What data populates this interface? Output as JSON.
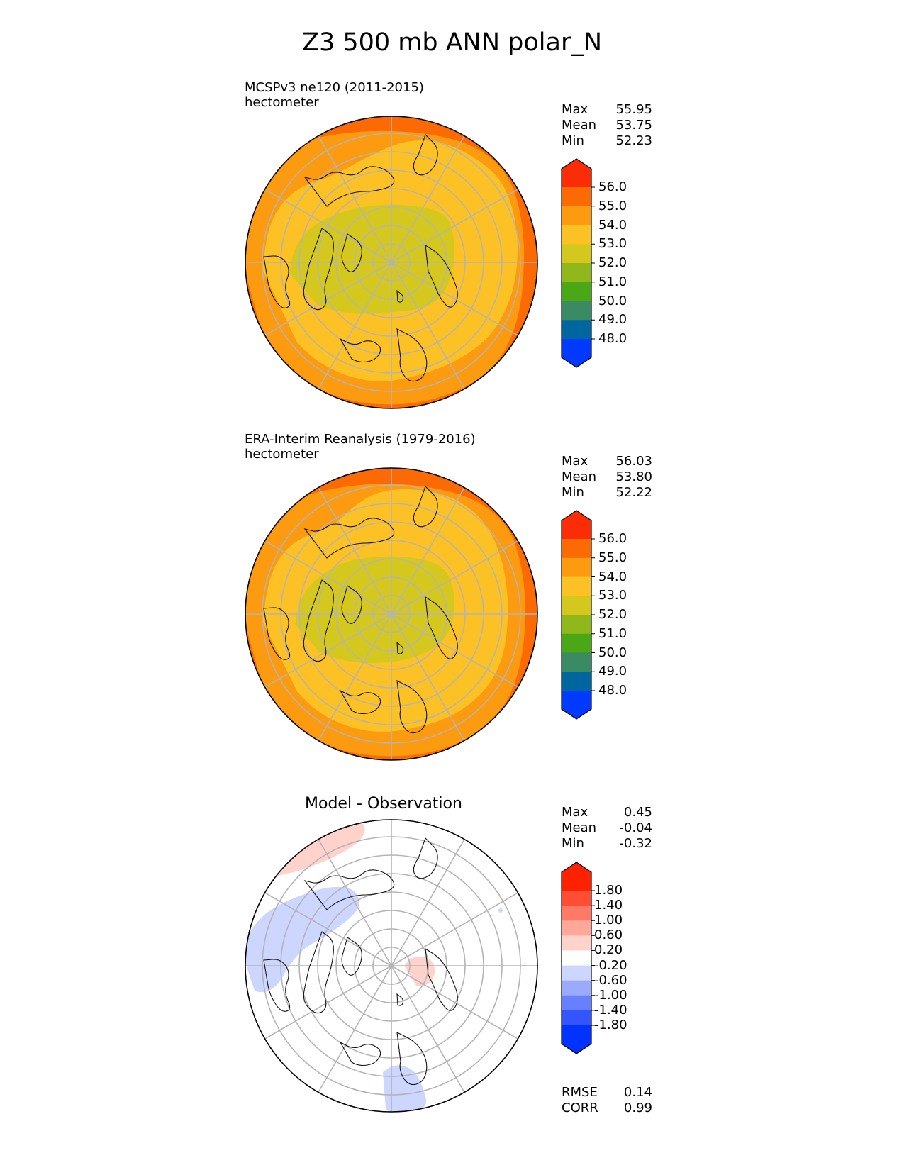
{
  "title": "Z3 500 mb ANN polar_N",
  "panels": [
    {
      "name": "test",
      "title_line1": "MCSPv3 ne120 (2011-2015)",
      "title_line2": "hectometer",
      "stats": [
        {
          "label": "Max",
          "value": "55.95"
        },
        {
          "label": "Mean",
          "value": "53.75"
        },
        {
          "label": "Min",
          "value": "52.23"
        }
      ],
      "colorbar_labels": [
        "56.0",
        "55.0",
        "54.0",
        "53.0",
        "52.0",
        "51.0",
        "50.0",
        "49.0",
        "48.0"
      ]
    },
    {
      "name": "reference",
      "title_line1": "ERA-Interim Reanalysis (1979-2016)",
      "title_line2": "hectometer",
      "stats": [
        {
          "label": "Max",
          "value": "56.03"
        },
        {
          "label": "Mean",
          "value": "53.80"
        },
        {
          "label": "Min",
          "value": "52.22"
        }
      ],
      "colorbar_labels": [
        "56.0",
        "55.0",
        "54.0",
        "53.0",
        "52.0",
        "51.0",
        "50.0",
        "49.0",
        "48.0"
      ]
    },
    {
      "name": "difference",
      "title_center": "Model - Observation",
      "stats": [
        {
          "label": "Max",
          "value": "0.45"
        },
        {
          "label": "Mean",
          "value": "-0.04"
        },
        {
          "label": "Min",
          "value": "-0.32"
        }
      ],
      "colorbar_labels": [
        "1.80",
        "1.40",
        "1.00",
        "0.60",
        "0.20",
        "-0.20",
        "-0.60",
        "-1.00",
        "-1.40",
        "-1.80"
      ],
      "extra_stats": [
        {
          "label": "RMSE",
          "value": "0.14"
        },
        {
          "label": "CORR",
          "value": "0.99"
        }
      ]
    }
  ],
  "chart_data": {
    "type": "heatmap",
    "projection": "north polar stereographic",
    "variable": "Z3 500 mb",
    "season": "ANN",
    "units": "hectometer",
    "levels_main": [
      48,
      49,
      50,
      51,
      52,
      53,
      54,
      55,
      56
    ],
    "levels_diff": [
      -1.8,
      -1.4,
      -1.0,
      -0.6,
      -0.2,
      0.2,
      0.6,
      1.0,
      1.4,
      1.8
    ],
    "colors_main": [
      "#0039ff",
      "#0066a0",
      "#3a8a64",
      "#4aa716",
      "#90b81a",
      "#d4c81e",
      "#fcc124",
      "#fc9a10",
      "#fc6a04",
      "#fc2c06"
    ],
    "colors_diff": [
      "#0033ff",
      "#3355ff",
      "#6680ff",
      "#99aaff",
      "#ccd6ff",
      "#ffffff",
      "#ffd3cc",
      "#ffa799",
      "#ff7a66",
      "#ff4e33",
      "#ff2200"
    ],
    "panels": [
      {
        "name": "MCSPv3 ne120 (2011-2015)",
        "max": 55.95,
        "mean": 53.75,
        "min": 52.23
      },
      {
        "name": "ERA-Interim Reanalysis (1979-2016)",
        "max": 56.03,
        "mean": 53.8,
        "min": 52.22
      },
      {
        "name": "Model - Observation",
        "max": 0.45,
        "mean": -0.04,
        "min": -0.32,
        "rmse": 0.14,
        "corr": 0.99
      }
    ]
  }
}
